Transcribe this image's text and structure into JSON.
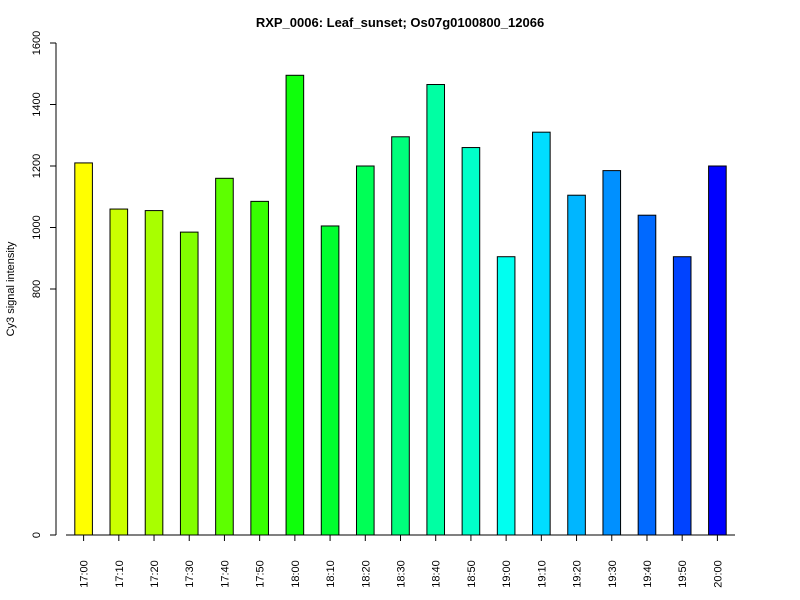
{
  "chart_data": {
    "type": "bar",
    "title": "RXP_0006: Leaf_sunset; Os07g0100800_12066",
    "xlabel": "",
    "ylabel": "Cy3 signal intensity",
    "ylim": [
      0,
      1600
    ],
    "yticks": [
      "0",
      "800",
      "1000",
      "1200",
      "1400",
      "1600"
    ],
    "grid": false,
    "categories": [
      "17:00",
      "17:10",
      "17:20",
      "17:30",
      "17:40",
      "17:50",
      "18:00",
      "18:10",
      "18:20",
      "18:30",
      "18:40",
      "18:50",
      "19:00",
      "19:10",
      "19:20",
      "19:30",
      "19:40",
      "19:50",
      "20:00"
    ],
    "values": [
      1210,
      1060,
      1055,
      985,
      1160,
      1085,
      1495,
      1005,
      1200,
      1295,
      1465,
      1260,
      905,
      1310,
      1105,
      1185,
      1040,
      905,
      1200
    ],
    "colors": [
      "#ffff00",
      "#cbff00",
      "#a8ff00",
      "#82ff00",
      "#5dff00",
      "#37ff00",
      "#0fff0b",
      "#00ff2f",
      "#00ff56",
      "#00ff7c",
      "#00ffa3",
      "#00ffc9",
      "#00fff0",
      "#00ddff",
      "#00b6ff",
      "#0090ff",
      "#0069ff",
      "#0043ff",
      "#0000ff"
    ]
  }
}
